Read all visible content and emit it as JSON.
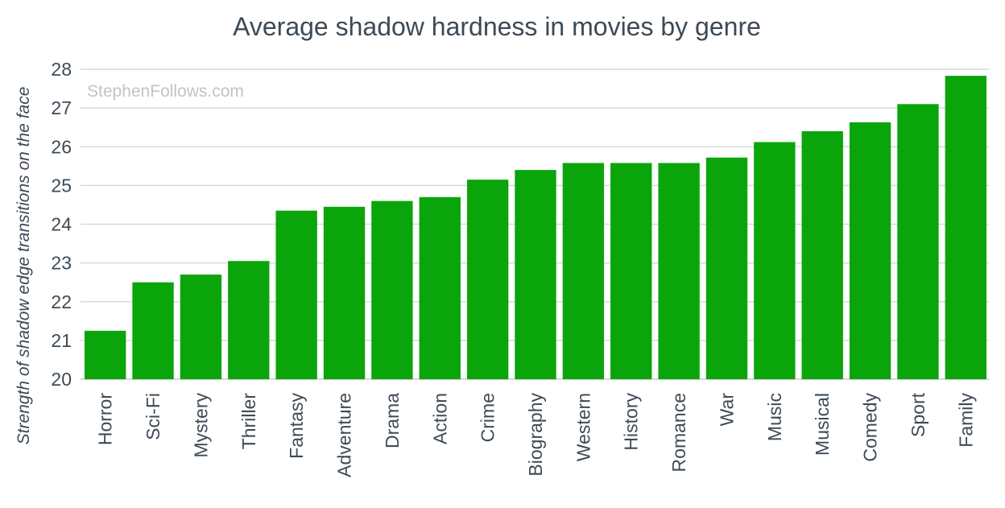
{
  "colors": {
    "bar": "#0aa50a",
    "text": "#3d4a56",
    "grid": "#d9d9d9",
    "watermark": "#c3c3c3",
    "background": "#ffffff"
  },
  "chart_data": {
    "type": "bar",
    "title": "Average shadow hardness in movies by genre",
    "watermark": "StephenFollows.com",
    "xlabel": "",
    "ylabel": "Strength of shadow edge transitions on the face",
    "ylim": [
      20,
      28
    ],
    "yticks": [
      "20",
      "21",
      "22",
      "23",
      "24",
      "25",
      "26",
      "27",
      "28"
    ],
    "grid": true,
    "legend": "none",
    "categories": [
      "Horror",
      "Sci-Fi",
      "Mystery",
      "Thriller",
      "Fantasy",
      "Adventure",
      "Drama",
      "Action",
      "Crime",
      "Biography",
      "Western",
      "History",
      "Romance",
      "War",
      "Music",
      "Musical",
      "Comedy",
      "Sport",
      "Family"
    ],
    "values": [
      21.25,
      22.5,
      22.7,
      23.05,
      24.35,
      24.45,
      24.6,
      24.7,
      25.15,
      25.4,
      25.58,
      25.58,
      25.58,
      25.72,
      26.12,
      26.4,
      26.63,
      27.1,
      27.83
    ]
  }
}
